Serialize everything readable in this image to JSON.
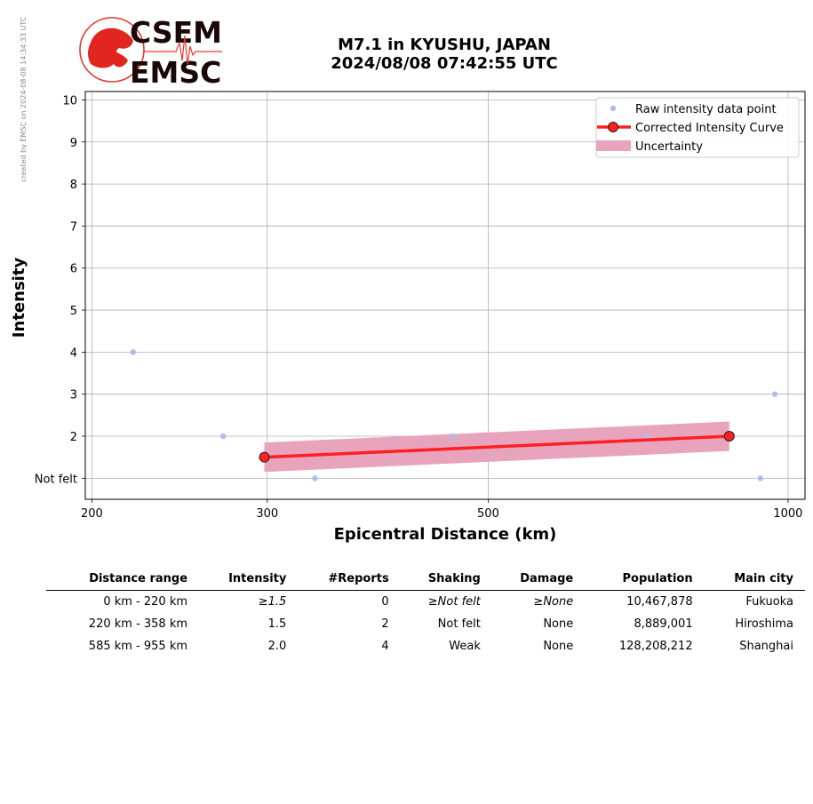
{
  "watermark": "created by EMSC on 2024-08-08 14:34:33 UTC",
  "logo": {
    "line1": "CSEM",
    "line2": "EMSC"
  },
  "title": {
    "line1": "M7.1 in KYUSHU, JAPAN",
    "line2": "2024/08/08 07:42:55 UTC"
  },
  "chart_data": {
    "type": "scatter",
    "xlabel": "Epicentral Distance (km)",
    "ylabel": "Intensity",
    "x_scale": "log",
    "xlim": [
      197,
      1040
    ],
    "ylim": [
      0.5,
      10.2
    ],
    "x_ticks": [
      200,
      300,
      500,
      1000
    ],
    "x_tick_labels": [
      "200",
      "300",
      "500",
      "1000"
    ],
    "y_ticks": [
      1,
      2,
      3,
      4,
      5,
      6,
      7,
      8,
      9,
      10
    ],
    "y_tick_labels": [
      "Not felt",
      "2",
      "3",
      "4",
      "5",
      "6",
      "7",
      "8",
      "9",
      "10"
    ],
    "grid": true,
    "legend_position": "top-right",
    "series": [
      {
        "name": "Raw intensity data point",
        "kind": "points",
        "color": "#aebde8",
        "points": [
          [
            220,
            4
          ],
          [
            271,
            2
          ],
          [
            335,
            1
          ],
          [
            461,
            2
          ],
          [
            720,
            2
          ],
          [
            938,
            1
          ],
          [
            970,
            3
          ]
        ]
      },
      {
        "name": "Corrected Intensity Curve",
        "kind": "line",
        "color": "#ff2020",
        "points": [
          [
            298,
            1.5
          ],
          [
            873,
            2.0
          ]
        ]
      },
      {
        "name": "Uncertainty",
        "kind": "band",
        "color": "#e8a3bd",
        "x": [
          298,
          873
        ],
        "lower": [
          1.15,
          1.65
        ],
        "upper": [
          1.85,
          2.35
        ]
      }
    ]
  },
  "table": {
    "headers": [
      "Distance range",
      "Intensity",
      "#Reports",
      "Shaking",
      "Damage",
      "Population",
      "Main city"
    ],
    "rows": [
      {
        "distance": "0 km -  220 km",
        "ge": "≥",
        "intensity": "1.5",
        "reports": "0",
        "shaking_ge": "≥",
        "shaking": "Not felt",
        "damage_ge": "≥",
        "damage": "None",
        "population": "10,467,878",
        "city": "Fukuoka"
      },
      {
        "distance": "220 km -  358 km",
        "intensity": "1.5",
        "reports": "2",
        "shaking": "Not felt",
        "damage": "None",
        "population": "8,889,001",
        "city": "Hiroshima"
      },
      {
        "distance": "585 km -  955 km",
        "intensity": "2.0",
        "reports": "4",
        "shaking": "Weak",
        "damage": "None",
        "population": "128,208,212",
        "city": "Shanghai"
      }
    ]
  }
}
